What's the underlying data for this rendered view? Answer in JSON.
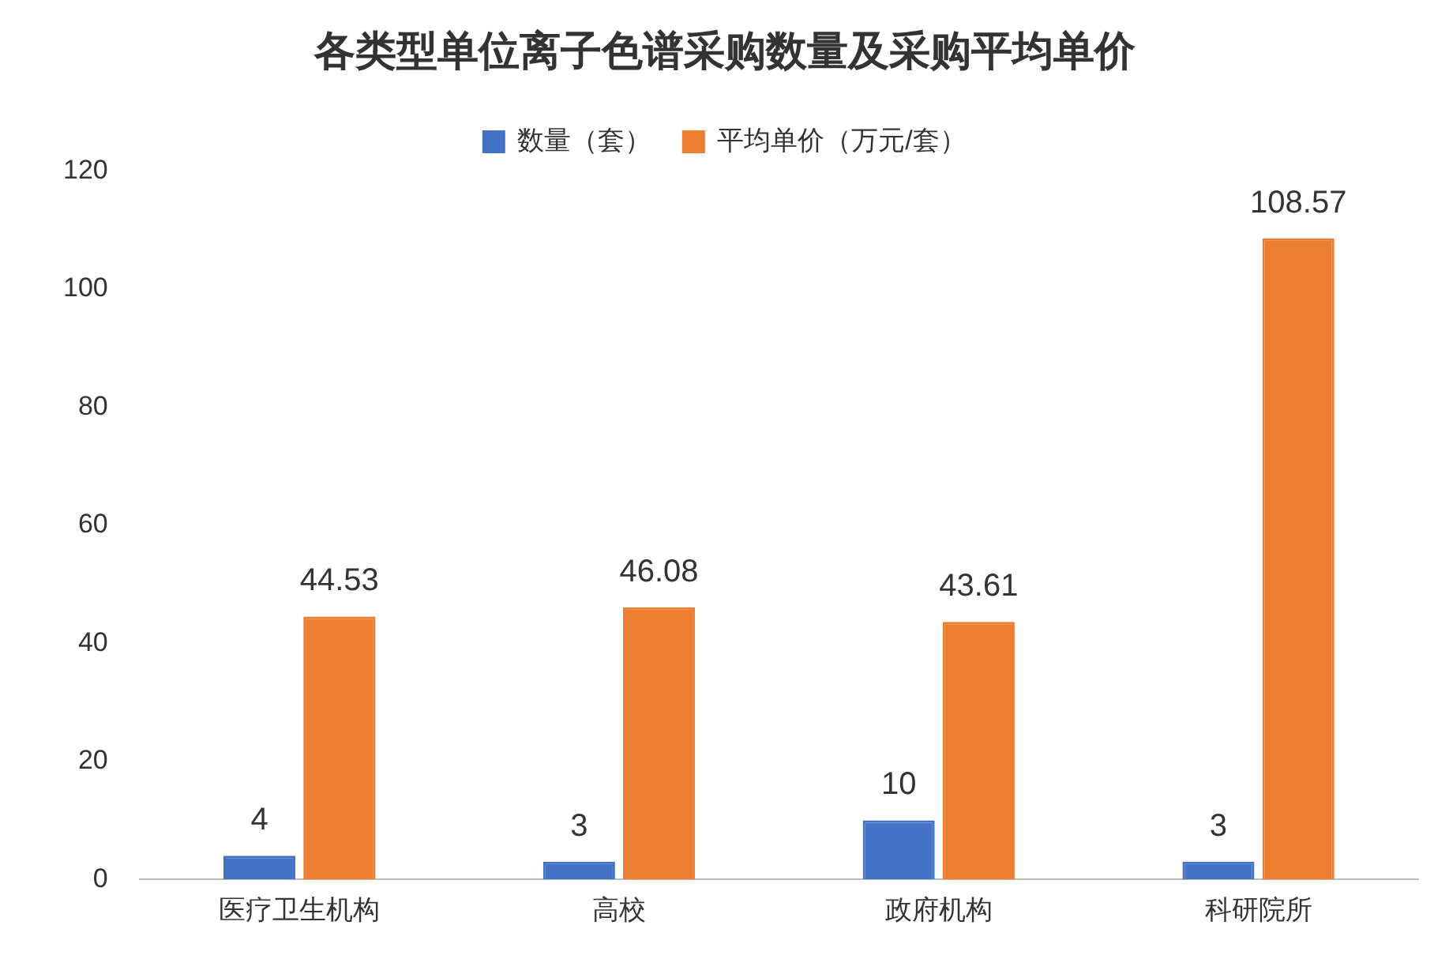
{
  "chart_data": {
    "type": "bar",
    "title": "各类型单位离子色谱采购数量及采购平均单价",
    "categories": [
      "医疗卫生机构",
      "高校",
      "政府机构",
      "科研院所"
    ],
    "series": [
      {
        "name": "数量（套）",
        "color": "#4472c4",
        "values": [
          4,
          3,
          10,
          3
        ]
      },
      {
        "name": "平均单价（万元/套）",
        "color": "#ed7d31",
        "values": [
          44.53,
          46.08,
          43.61,
          108.57
        ]
      }
    ],
    "ylim": [
      0,
      120
    ],
    "yticks": [
      0,
      20,
      40,
      60,
      80,
      100,
      120
    ],
    "grid": false,
    "legend": "top",
    "data_labels": true
  }
}
